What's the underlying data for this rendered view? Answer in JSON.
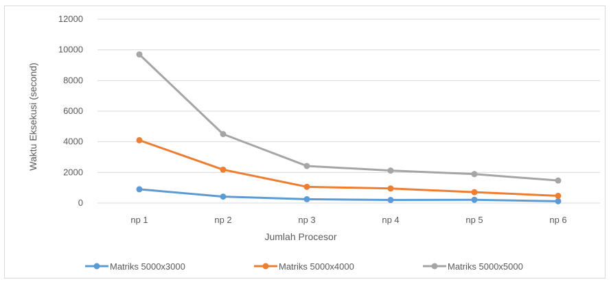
{
  "chart_data": {
    "type": "line",
    "title": "",
    "xlabel": "Jumlah Procesor",
    "ylabel": "Waktu Eksekusi (second)",
    "categories": [
      "np 1",
      "np 2",
      "np 3",
      "np 4",
      "np 5",
      "np 6"
    ],
    "ylim": [
      0,
      12000
    ],
    "yticks": [
      0,
      2000,
      4000,
      6000,
      8000,
      10000,
      12000
    ],
    "grid": true,
    "legend_position": "bottom",
    "series": [
      {
        "name": "Matriks 5000x3000",
        "color": "#5b9bd5",
        "values": [
          900,
          420,
          250,
          200,
          210,
          120
        ]
      },
      {
        "name": "Matriks 5000x4000",
        "color": "#ed7d31",
        "values": [
          4100,
          2180,
          1060,
          950,
          710,
          470
        ]
      },
      {
        "name": "Matriks 5000x5000",
        "color": "#a5a5a5",
        "values": [
          9700,
          4500,
          2420,
          2120,
          1890,
          1470
        ]
      }
    ]
  }
}
